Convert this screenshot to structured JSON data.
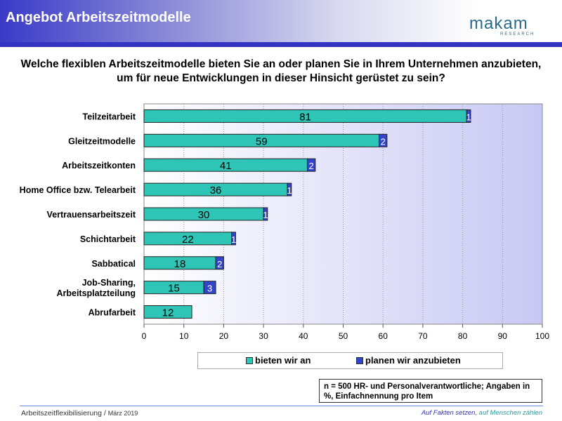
{
  "header": {
    "title": "Angebot Arbeitszeitmodelle",
    "logo_text": "makam",
    "logo_sub": "RESEARCH"
  },
  "question": "Welche flexiblen Arbeitszeitmodelle bieten Sie an oder planen Sie in Ihrem Unternehmen anzubieten, um für neue Entwicklungen in dieser Hinsicht gerüstet zu sein?",
  "chart_data": {
    "type": "bar",
    "orientation": "horizontal",
    "stacked": true,
    "categories": [
      "Teilzeitarbeit",
      "Gleitzeitmodelle",
      "Arbeitszeitkonten",
      "Home Office bzw. Telearbeit",
      "Vertrauensarbeitszeit",
      "Schichtarbeit",
      "Sabbatical",
      "Job-Sharing, Arbeitsplatzteilung",
      "Abrufarbeit"
    ],
    "series": [
      {
        "name": "bieten wir an",
        "color": "#2ec4b6",
        "values": [
          81,
          59,
          41,
          36,
          30,
          22,
          18,
          15,
          12
        ]
      },
      {
        "name": "planen wir anzubieten",
        "color": "#3344cc",
        "values": [
          1,
          2,
          2,
          1,
          1,
          1,
          2,
          3,
          0
        ]
      }
    ],
    "xlim": [
      0,
      100
    ],
    "xticks": [
      0,
      10,
      20,
      30,
      40,
      50,
      60,
      70,
      80,
      90,
      100
    ],
    "grid": true,
    "legend": "bottom"
  },
  "note": "n = 500 HR- und Personalverantwortliche; Angaben in %, Einfachnennung pro Item",
  "footer": {
    "left": "Arbeitszeitflexibilisierung",
    "sep": " / ",
    "date": "März 2019",
    "right_a": "Auf Fakten setzen,",
    "right_b": " auf Menschen zählen"
  }
}
